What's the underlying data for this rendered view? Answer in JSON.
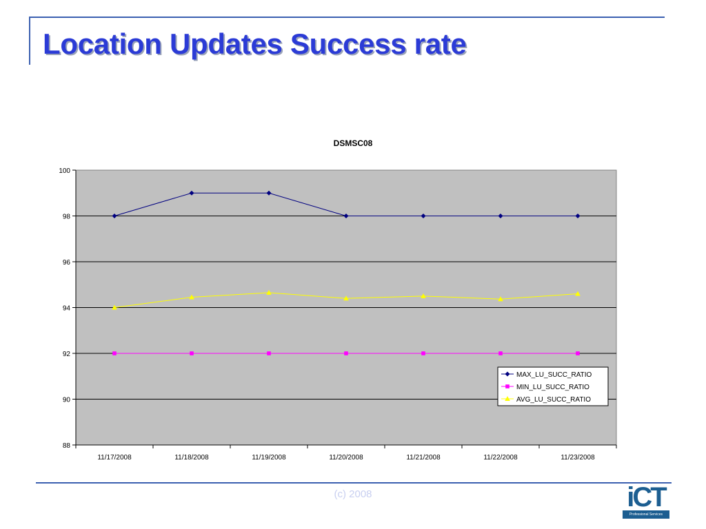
{
  "slide": {
    "title": "Location Updates Success rate",
    "footer": "(c) 2008"
  },
  "logo": {
    "icon": "ict-logo",
    "word": "iCT",
    "subtitle": "Professional Services"
  },
  "chart_data": {
    "type": "line",
    "title": "DSMSC08",
    "xlabel": "",
    "ylabel": "",
    "categories": [
      "11/17/2008",
      "11/18/2008",
      "11/19/2008",
      "11/20/2008",
      "11/21/2008",
      "11/22/2008",
      "11/23/2008"
    ],
    "ylim": [
      88,
      100
    ],
    "yticks": [
      88,
      90,
      92,
      94,
      96,
      98,
      100
    ],
    "grid": true,
    "legend_position": "bottom-right",
    "plot_background": "#c0c0c0",
    "series": [
      {
        "name": "MAX_LU_SUCC_RATIO",
        "values": [
          98,
          99,
          99,
          98,
          98,
          98,
          98
        ],
        "color": "#000080",
        "marker": "diamond"
      },
      {
        "name": "MIN_LU_SUCC_RATIO",
        "values": [
          92,
          92,
          92,
          92,
          92,
          92,
          92
        ],
        "color": "#ff00ff",
        "marker": "square"
      },
      {
        "name": "AVG_LU_SUCC_RATIO",
        "values": [
          94,
          94.45,
          94.65,
          94.4,
          94.5,
          94.37,
          94.6
        ],
        "color": "#ffff00",
        "marker": "triangle"
      }
    ]
  }
}
